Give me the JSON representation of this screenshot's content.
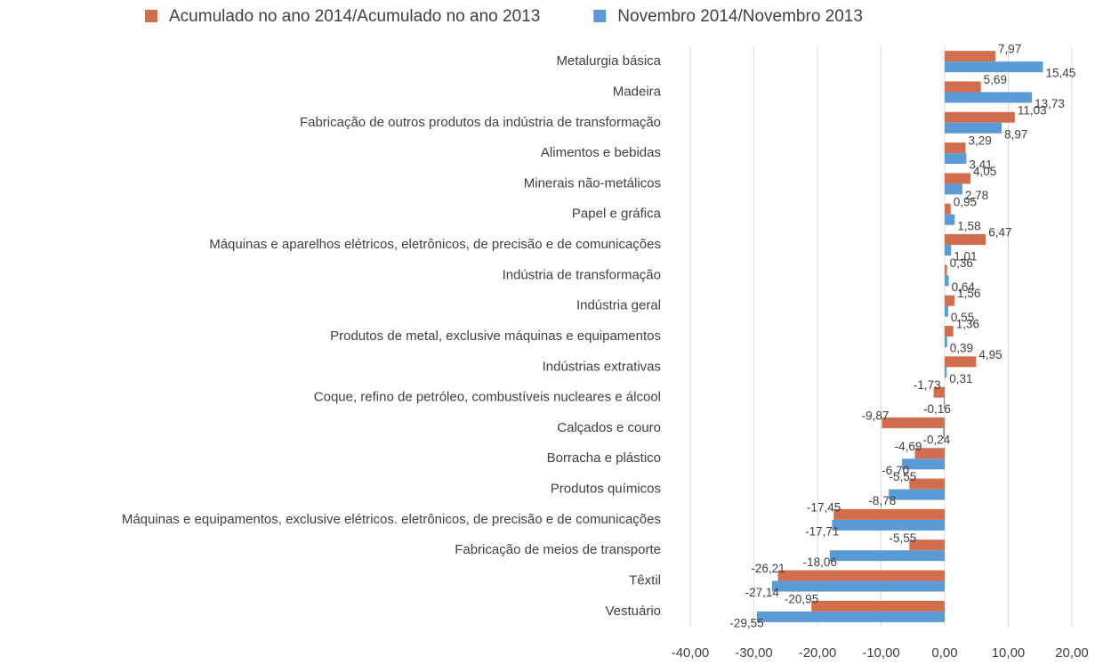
{
  "chart_data": {
    "type": "bar",
    "orientation": "horizontal",
    "categories": [
      "Metalurgia básica",
      "Madeira",
      "Fabricação de outros produtos da indústria de transformação",
      "Alimentos e bebidas",
      "Minerais não-metálicos",
      "Papel e gráfica",
      "Máquinas e aparelhos elétricos, eletrônicos, de precisão e de comunicações",
      "Indústria de transformação",
      "Indústria geral",
      "Produtos de metal, exclusive máquinas e equipamentos",
      "Indústrias extrativas",
      "Coque, refino de petróleo, combustíveis nucleares e álcool",
      "Calçados e couro",
      "Borracha e plástico",
      "Produtos químicos",
      "Máquinas e equipamentos, exclusive elétricos. eletrônicos, de precisão e de comunicações",
      "Fabricação de meios de transporte",
      "Têxtil",
      "Vestuário"
    ],
    "series": [
      {
        "name": "Acumulado no ano 2014/Acumulado no ano 2013",
        "color": "#d26e4e",
        "values": [
          7.97,
          5.69,
          11.03,
          3.29,
          4.05,
          0.95,
          6.47,
          0.36,
          1.56,
          1.36,
          4.95,
          -1.73,
          -9.87,
          -4.69,
          -5.55,
          -17.45,
          -5.55,
          -26.21,
          -20.95
        ],
        "value_labels": [
          "7,97",
          "5,69",
          "11,03",
          "3,29",
          "4,05",
          "0,95",
          "6,47",
          "0,36",
          "1,56",
          "1,36",
          "4,95",
          "-1,73",
          "-9,87",
          "-4,69",
          "-5,55",
          "-17,45",
          "-5,55",
          "-26,21",
          "-20,95"
        ]
      },
      {
        "name": "Novembro 2014/Novembro 2013",
        "color": "#5b9bd5",
        "values": [
          15.45,
          13.73,
          8.97,
          3.41,
          2.78,
          1.58,
          1.01,
          0.64,
          0.55,
          0.39,
          0.31,
          -0.16,
          -0.24,
          -6.7,
          -8.78,
          -17.71,
          -18.06,
          -27.14,
          -29.55
        ],
        "value_labels": [
          "15,45",
          "13,73",
          "8,97",
          "3,41",
          "2,78",
          "1,58",
          "1,01",
          "0,64",
          "0,55",
          "0,39",
          "0,31",
          "-0,16",
          "-0,24",
          "-6,70",
          "-8,78",
          "-17,71",
          "-18,06",
          "-27,14",
          "-29,55"
        ]
      }
    ],
    "xlim": [
      -40,
      20
    ],
    "xticks": [
      {
        "value": -40,
        "label": "-40,00"
      },
      {
        "value": -30,
        "label": "-30,00"
      },
      {
        "value": -20,
        "label": "-20,00"
      },
      {
        "value": -10,
        "label": "-10,00"
      },
      {
        "value": 0,
        "label": "0,00"
      },
      {
        "value": 10,
        "label": "10,00"
      },
      {
        "value": 20,
        "label": "20,00"
      }
    ],
    "grid": true,
    "legend": "top"
  }
}
